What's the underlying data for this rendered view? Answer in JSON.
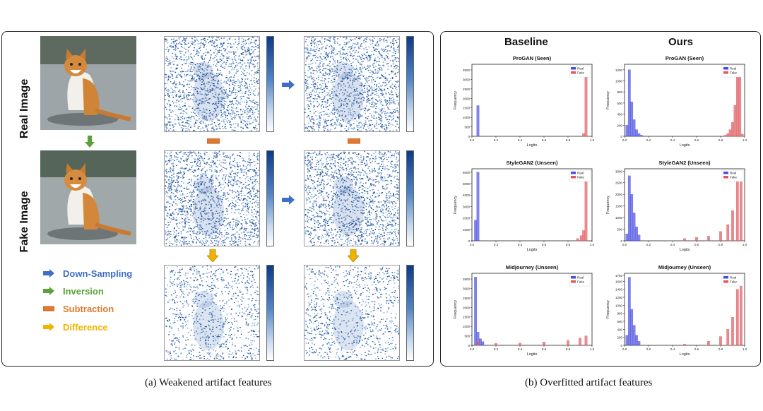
{
  "panel_a": {
    "row_labels": {
      "real": "Real Image",
      "fake": "Fake Image"
    },
    "legend": [
      {
        "label": "Down-Sampling",
        "color": "#3f6fc4",
        "icon": "arrow-right-icon"
      },
      {
        "label": "Inversion",
        "color": "#5aa23a",
        "icon": "arrow-right-icon"
      },
      {
        "label": "Subtraction",
        "color": "#e07a2e",
        "icon": "minus-icon"
      },
      {
        "label": "Difference",
        "color": "#f0b400",
        "icon": "arrow-right-icon"
      }
    ],
    "caption": "(a) Weakened artifact features"
  },
  "panel_b": {
    "columns": [
      "Baseline",
      "Ours"
    ],
    "caption": "(b) Overfitted artifact features",
    "colors": {
      "real": "#4a4ee0",
      "fake": "#e0585e"
    }
  },
  "chart_data": [
    {
      "type": "bar",
      "title": "ProGAN (Seen)",
      "xlabel": "Logits",
      "ylabel": "Frequency",
      "legend": [
        "Real",
        "Fake"
      ],
      "xlim": [
        0,
        1
      ],
      "ylim": [
        0,
        3800
      ],
      "yticks": [
        0,
        500,
        1000,
        1500,
        2000,
        2500,
        3000,
        3500
      ],
      "xticks": [
        "0.0",
        "0.2",
        "0.4",
        "0.6",
        "0.8",
        "1.0"
      ],
      "series": [
        {
          "name": "Real",
          "values": [
            [
              0.05,
              1620
            ]
          ]
        },
        {
          "name": "Fake",
          "values": [
            [
              0.93,
              150
            ],
            [
              0.95,
              3600
            ]
          ]
        }
      ]
    },
    {
      "type": "bar",
      "title": "ProGAN (Seen)",
      "xlabel": "Logits",
      "ylabel": "Frequency",
      "legend": [
        "Real",
        "Fake"
      ],
      "xlim": [
        0,
        1
      ],
      "ylim": [
        0,
        1300
      ],
      "yticks": [
        0,
        200,
        400,
        600,
        800,
        1000,
        1200
      ],
      "xticks": [
        "0.0",
        "0.2",
        "0.4",
        "0.6",
        "0.8",
        "1.0"
      ],
      "series": [
        {
          "name": "Real",
          "values": [
            [
              0.02,
              200
            ],
            [
              0.04,
              1200
            ],
            [
              0.06,
              620
            ],
            [
              0.08,
              300
            ],
            [
              0.1,
              120
            ],
            [
              0.12,
              50
            ],
            [
              0.14,
              20
            ]
          ]
        },
        {
          "name": "Fake",
          "values": [
            [
              0.84,
              20
            ],
            [
              0.86,
              50
            ],
            [
              0.88,
              120
            ],
            [
              0.9,
              250
            ],
            [
              0.92,
              560
            ],
            [
              0.94,
              1240
            ],
            [
              0.96,
              1150
            ],
            [
              0.98,
              40
            ]
          ]
        }
      ]
    },
    {
      "type": "bar",
      "title": "StyleGAN2 (Unseen)",
      "xlabel": "Logits",
      "ylabel": "Frequency",
      "legend": [
        "Real",
        "Fake"
      ],
      "xlim": [
        0,
        1
      ],
      "ylim": [
        0,
        6300
      ],
      "yticks": [
        0,
        1000,
        2000,
        3000,
        4000,
        5000,
        6000
      ],
      "xticks": [
        "0.0",
        "0.2",
        "0.4",
        "0.6",
        "0.8",
        "1.0"
      ],
      "series": [
        {
          "name": "Real",
          "values": [
            [
              0.03,
              1800
            ],
            [
              0.05,
              6000
            ]
          ]
        },
        {
          "name": "Fake",
          "values": [
            [
              0.88,
              200
            ],
            [
              0.91,
              450
            ],
            [
              0.93,
              900
            ],
            [
              0.95,
              5500
            ]
          ]
        }
      ]
    },
    {
      "type": "bar",
      "title": "StyleGAN2 (Unseen)",
      "xlabel": "Logits",
      "ylabel": "Frequency",
      "legend": [
        "Real",
        "Fake"
      ],
      "xlim": [
        0,
        1
      ],
      "ylim": [
        0,
        3100
      ],
      "yticks": [
        0,
        500,
        1000,
        1500,
        2000,
        2500,
        3000
      ],
      "xticks": [
        "0.0",
        "0.2",
        "0.4",
        "0.6",
        "0.8",
        "1.0"
      ],
      "series": [
        {
          "name": "Real",
          "values": [
            [
              0.02,
              300
            ],
            [
              0.04,
              2800
            ],
            [
              0.06,
              2000
            ],
            [
              0.08,
              1200
            ],
            [
              0.1,
              600
            ],
            [
              0.12,
              250
            ]
          ]
        },
        {
          "name": "Fake",
          "values": [
            [
              0.5,
              100
            ],
            [
              0.6,
              150
            ],
            [
              0.7,
              200
            ],
            [
              0.8,
              400
            ],
            [
              0.86,
              700
            ],
            [
              0.9,
              1300
            ],
            [
              0.94,
              2900
            ],
            [
              0.97,
              2700
            ]
          ]
        }
      ]
    },
    {
      "type": "bar",
      "title": "Midjourney (Unseen)",
      "xlabel": "Logits",
      "ylabel": "Frequency",
      "legend": [
        "Real",
        "Fake"
      ],
      "xlim": [
        0,
        1
      ],
      "ylim": [
        0,
        3800
      ],
      "yticks": [
        0,
        500,
        1000,
        1500,
        2000,
        2500,
        3000,
        3500
      ],
      "xticks": [
        "0.0",
        "0.2",
        "0.4",
        "0.6",
        "0.8",
        "1.0"
      ],
      "series": [
        {
          "name": "Real",
          "values": [
            [
              0.03,
              3600
            ],
            [
              0.05,
              700
            ],
            [
              0.07,
              350
            ],
            [
              0.09,
              200
            ]
          ]
        },
        {
          "name": "Fake",
          "values": [
            [
              0.05,
              200
            ],
            [
              0.2,
              100
            ],
            [
              0.4,
              120
            ],
            [
              0.6,
              180
            ],
            [
              0.8,
              260
            ],
            [
              0.9,
              380
            ],
            [
              0.95,
              500
            ]
          ]
        }
      ]
    },
    {
      "type": "bar",
      "title": "Midjourney (Unseen)",
      "xlabel": "Logits",
      "ylabel": "Frequency",
      "legend": [
        "Real",
        "Fake"
      ],
      "xlim": [
        0,
        1
      ],
      "ylim": [
        0,
        1800
      ],
      "yticks": [
        0,
        200,
        400,
        600,
        800,
        1000,
        1200,
        1400,
        1600,
        1750
      ],
      "xticks": [
        "0.0",
        "0.2",
        "0.4",
        "0.6",
        "0.8",
        "1.0"
      ],
      "series": [
        {
          "name": "Real",
          "values": [
            [
              0.02,
              250
            ],
            [
              0.04,
              1700
            ],
            [
              0.06,
              900
            ],
            [
              0.08,
              500
            ],
            [
              0.1,
              250
            ],
            [
              0.12,
              100
            ]
          ]
        },
        {
          "name": "Fake",
          "values": [
            [
              0.5,
              30
            ],
            [
              0.7,
              100
            ],
            [
              0.8,
              220
            ],
            [
              0.86,
              400
            ],
            [
              0.9,
              700
            ],
            [
              0.94,
              1400
            ],
            [
              0.97,
              1650
            ]
          ]
        }
      ]
    }
  ]
}
